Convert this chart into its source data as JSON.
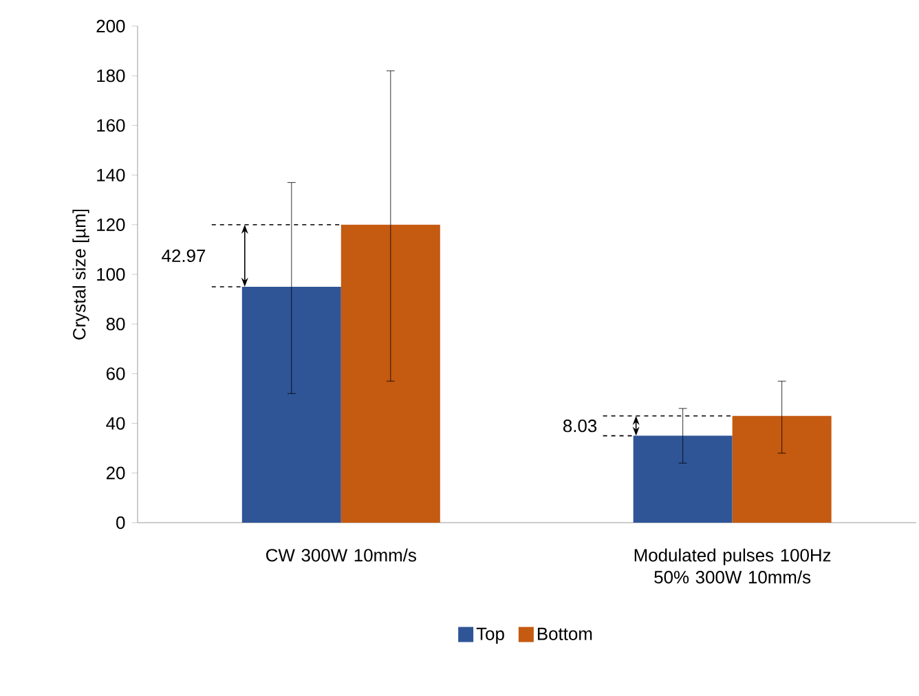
{
  "chart_data": {
    "type": "bar",
    "ylabel": "Crystal size [µm]",
    "categories": [
      "CW 300W 10mm/s",
      "Modulated pulses 100Hz 50% 300W 10mm/s"
    ],
    "series": [
      {
        "name": "Top",
        "color": "#2f5597",
        "values": [
          95,
          35
        ],
        "errors": [
          [
            52,
            137
          ],
          [
            24,
            46
          ]
        ]
      },
      {
        "name": "Bottom",
        "color": "#c55a11",
        "values": [
          120,
          43
        ],
        "errors": [
          [
            57,
            182
          ],
          [
            28,
            57
          ]
        ]
      }
    ],
    "ylim": [
      0,
      200
    ],
    "yticks": [
      0,
      20,
      40,
      60,
      80,
      100,
      120,
      140,
      160,
      180,
      200
    ],
    "grid": false,
    "legend": "bottom",
    "annotations": [
      "42.97",
      {
        "text": "8.03",
        "x": "Modulated pulses 100Hz 50% 300W 10mm/s",
        "y": 43
      }
    ]
  }
}
